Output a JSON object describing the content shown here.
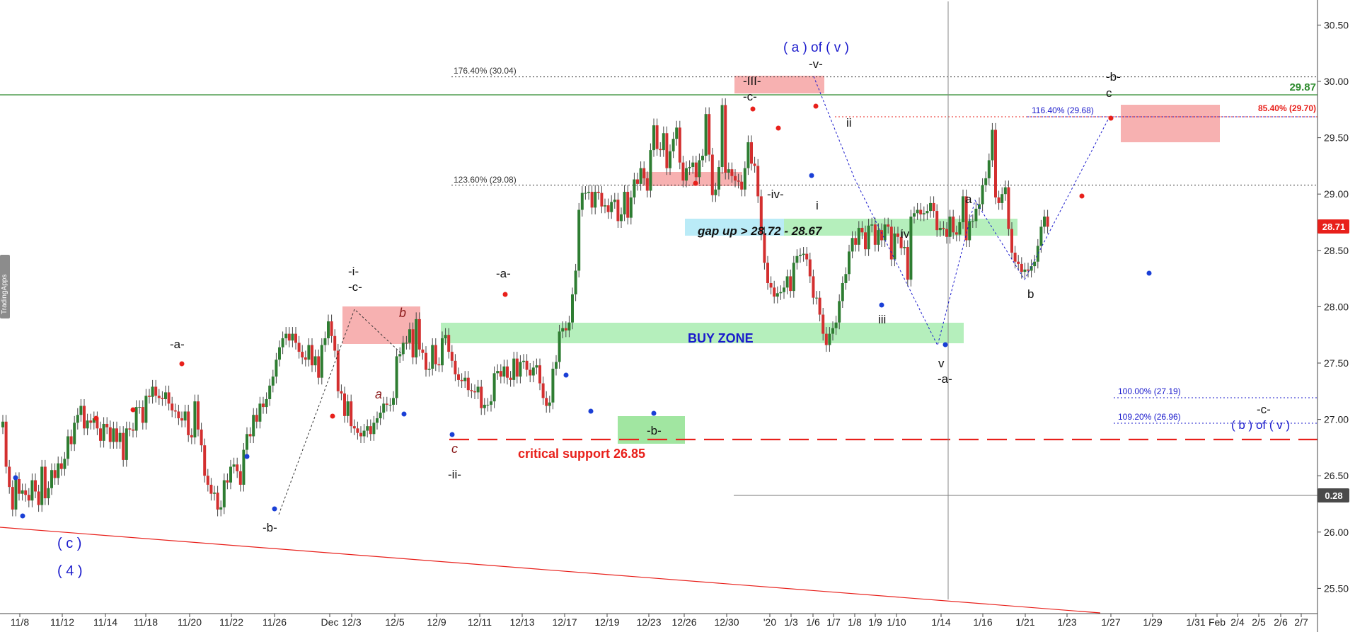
{
  "watermark": "TradingApps",
  "chart_data": {
    "type": "candlestick",
    "title": "",
    "xlabel": "",
    "ylabel": "",
    "ylim": [
      25.3,
      30.65
    ],
    "yticks": [
      "30.50",
      "30.00",
      "29.50",
      "29.00",
      "28.50",
      "28.00",
      "27.50",
      "27.00",
      "26.50",
      "26.00",
      "25.50"
    ],
    "x_tick_labels": [
      "11/8",
      "11/12",
      "11/14",
      "11/18",
      "11/20",
      "11/22",
      "11/26",
      "Dec",
      "12/3",
      "12/5",
      "12/9",
      "12/11",
      "12/13",
      "12/17",
      "12/19",
      "12/23",
      "12/26",
      "12/30",
      "'20",
      "1/3",
      "1/6",
      "1/7",
      "1/8",
      "1/9",
      "1/10",
      "1/14",
      "1/16",
      "1/21",
      "1/23",
      "1/27",
      "1/29",
      "1/31",
      "Feb",
      "2/4",
      "2/5",
      "2/6",
      "2/7"
    ],
    "grid": false,
    "colors": {
      "up": "#2e7d32",
      "down": "#d32f2f",
      "wave_text": "#1a1acc",
      "critical": "#e8201b",
      "green_level": "#2e8b2e"
    },
    "closes": [
      26.98,
      26.58,
      26.4,
      26.2,
      26.47,
      26.34,
      26.37,
      26.33,
      26.28,
      26.46,
      26.36,
      26.24,
      26.58,
      26.3,
      26.39,
      26.55,
      26.48,
      26.61,
      26.56,
      26.65,
      26.85,
      26.78,
      26.97,
      27.04,
      27.12,
      26.92,
      26.99,
      26.97,
      27.01,
      26.92,
      26.81,
      26.96,
      26.93,
      26.8,
      26.92,
      26.8,
      26.88,
      26.64,
      26.92,
      26.91,
      26.9,
      27.11,
      27.11,
      26.97,
      27.21,
      27.2,
      27.29,
      27.21,
      27.19,
      27.18,
      27.24,
      27.14,
      27.08,
      27.07,
      27.01,
      26.99,
      27.07,
      26.86,
      26.84,
      27.16,
      26.91,
      26.77,
      26.5,
      26.42,
      26.34,
      26.35,
      26.2,
      26.22,
      26.46,
      26.44,
      26.58,
      26.6,
      26.54,
      26.42,
      26.73,
      26.87,
      26.85,
      27.04,
      26.98,
      27.14,
      27.11,
      27.18,
      27.3,
      27.38,
      27.53,
      27.64,
      27.72,
      27.76,
      27.7,
      27.76,
      27.68,
      27.6,
      27.55,
      27.53,
      27.66,
      27.48,
      27.56,
      27.37,
      27.66,
      27.72,
      27.87,
      27.74,
      27.61,
      27.25,
      27.23,
      27.03,
      27.16,
      26.94,
      26.92,
      26.88,
      26.85,
      26.9,
      26.94,
      26.87,
      26.97,
      27.01,
      27.06,
      27.14,
      27.13,
      27.13,
      27.19,
      27.56,
      27.58,
      27.68,
      27.68,
      27.8,
      27.55,
      27.89,
      27.62,
      27.59,
      27.44,
      27.45,
      27.66,
      27.49,
      27.48,
      27.72,
      27.75,
      27.6,
      27.52,
      27.4,
      27.35,
      27.34,
      27.37,
      27.26,
      27.25,
      27.24,
      27.29,
      27.1,
      27.13,
      27.13,
      27.16,
      27.41,
      27.43,
      27.38,
      27.47,
      27.37,
      27.35,
      27.54,
      27.38,
      27.51,
      27.52,
      27.44,
      27.39,
      27.46,
      27.48,
      27.32,
      27.19,
      27.12,
      27.15,
      27.45,
      27.51,
      27.78,
      27.81,
      27.79,
      27.86,
      28.11,
      28.32,
      28.86,
      29.01,
      29.01,
      29.02,
      28.88,
      29.02,
      29.01,
      28.89,
      28.9,
      28.84,
      28.93,
      28.95,
      28.76,
      28.82,
      29.02,
      28.79,
      28.97,
      29.13,
      29.09,
      29.23,
      29.14,
      29.03,
      29.39,
      29.61,
      29.4,
      29.39,
      29.54,
      29.23,
      29.38,
      29.49,
      29.59,
      29.28,
      29.12,
      29.23,
      29.24,
      29.28,
      29.15,
      29.3,
      29.34,
      29.71,
      29.35,
      28.99,
      29.04,
      29.24,
      29.79,
      29.19,
      29.22,
      29.16,
      29.12,
      29.11,
      29.04,
      29.23,
      29.46,
      29.27,
      29.25,
      28.98,
      28.65,
      28.39,
      28.21,
      28.17,
      28.09,
      28.12,
      28.13,
      28.17,
      28.27,
      28.14,
      28.39,
      28.45,
      28.46,
      28.47,
      28.42,
      28.27,
      28.08,
      28.08,
      27.93,
      27.76,
      27.66,
      27.76,
      27.81,
      27.86,
      28.05,
      28.21,
      28.29,
      28.49,
      28.61,
      28.55,
      28.7,
      28.66,
      28.51,
      28.72,
      28.73,
      28.55,
      28.68,
      28.59,
      28.73,
      28.71,
      28.42,
      28.65,
      28.62,
      28.52,
      28.53,
      28.24,
      28.8,
      28.83,
      28.86,
      28.82,
      28.83,
      28.85,
      28.92,
      28.85,
      28.68,
      28.7,
      28.69,
      28.62,
      28.8,
      28.66,
      28.64,
      28.75,
      28.98,
      28.59,
      28.76,
      28.76,
      28.87,
      28.91,
      29.08,
      29.14,
      29.3,
      29.57,
      28.97,
      28.92,
      29.0,
      29.06,
      28.69,
      28.48,
      28.4,
      28.38,
      28.31,
      28.33,
      28.32,
      28.36,
      28.4,
      28.54,
      28.71,
      28.8,
      28.71
    ],
    "annotations": [
      {
        "text": "( c )",
        "color": "#1a1acc"
      },
      {
        "text": "( 4 )",
        "color": "#1a1acc"
      },
      {
        "text": "-a-",
        "color": "#111"
      },
      {
        "text": "-b-",
        "color": "#111"
      },
      {
        "text": "-i-",
        "color": "#111"
      },
      {
        "text": "-c-",
        "color": "#111"
      },
      {
        "text": "b",
        "color": "#8b1a1a"
      },
      {
        "text": "a",
        "color": "#8b1a1a"
      },
      {
        "text": "c",
        "color": "#8b1a1a"
      },
      {
        "text": "-ii-",
        "color": "#111"
      },
      {
        "text": "-a-",
        "color": "#111"
      },
      {
        "text": "-b-",
        "color": "#111"
      },
      {
        "text": "BUY ZONE",
        "color": "#1a1acc"
      },
      {
        "text": "critical support 26.85",
        "color": "#e8201b"
      },
      {
        "text": "gap up > 28.72 - 28.67",
        "color": "#111"
      },
      {
        "text": "( a ) of ( v )",
        "color": "#1a1acc"
      },
      {
        "text": "-v-",
        "color": "#111"
      },
      {
        "text": "-III-",
        "color": "#111"
      },
      {
        "text": "-c-",
        "color": "#111"
      },
      {
        "text": "-iv-",
        "color": "#111"
      },
      {
        "text": "ii",
        "color": "#111"
      },
      {
        "text": "i",
        "color": "#111"
      },
      {
        "text": "iv",
        "color": "#111"
      },
      {
        "text": "iii",
        "color": "#111"
      },
      {
        "text": "v",
        "color": "#111"
      },
      {
        "text": "-a-",
        "color": "#111"
      },
      {
        "text": "a",
        "color": "#111"
      },
      {
        "text": "b",
        "color": "#111"
      },
      {
        "text": "-b-",
        "color": "#111"
      },
      {
        "text": "c",
        "color": "#111"
      },
      {
        "text": "-c-",
        "color": "#111"
      },
      {
        "text": "( b ) of ( v )",
        "color": "#1a1acc"
      }
    ],
    "levels": [
      {
        "label": "176.40% (30.04)",
        "value": 30.04,
        "color": "#333"
      },
      {
        "label": "123.60% (29.08)",
        "value": 29.08,
        "color": "#333"
      },
      {
        "label": "116.40% (29.68)",
        "value": 29.68,
        "color": "#1a1acc"
      },
      {
        "label": "85.40% (29.70)",
        "value": 29.7,
        "color": "#e8201b"
      },
      {
        "label": "100.00% (27.19)",
        "value": 27.19,
        "color": "#1a1acc"
      },
      {
        "label": "109.20% (26.96)",
        "value": 26.96,
        "color": "#1a1acc"
      }
    ],
    "price_tags": [
      {
        "label": "29.87",
        "value": 29.87,
        "color": "#2e8b2e"
      },
      {
        "label": "28.71",
        "value": 28.71,
        "color": "#e8201b"
      },
      {
        "label": "0.28",
        "value": 26.27,
        "color": "#4a4a4a"
      }
    ]
  }
}
